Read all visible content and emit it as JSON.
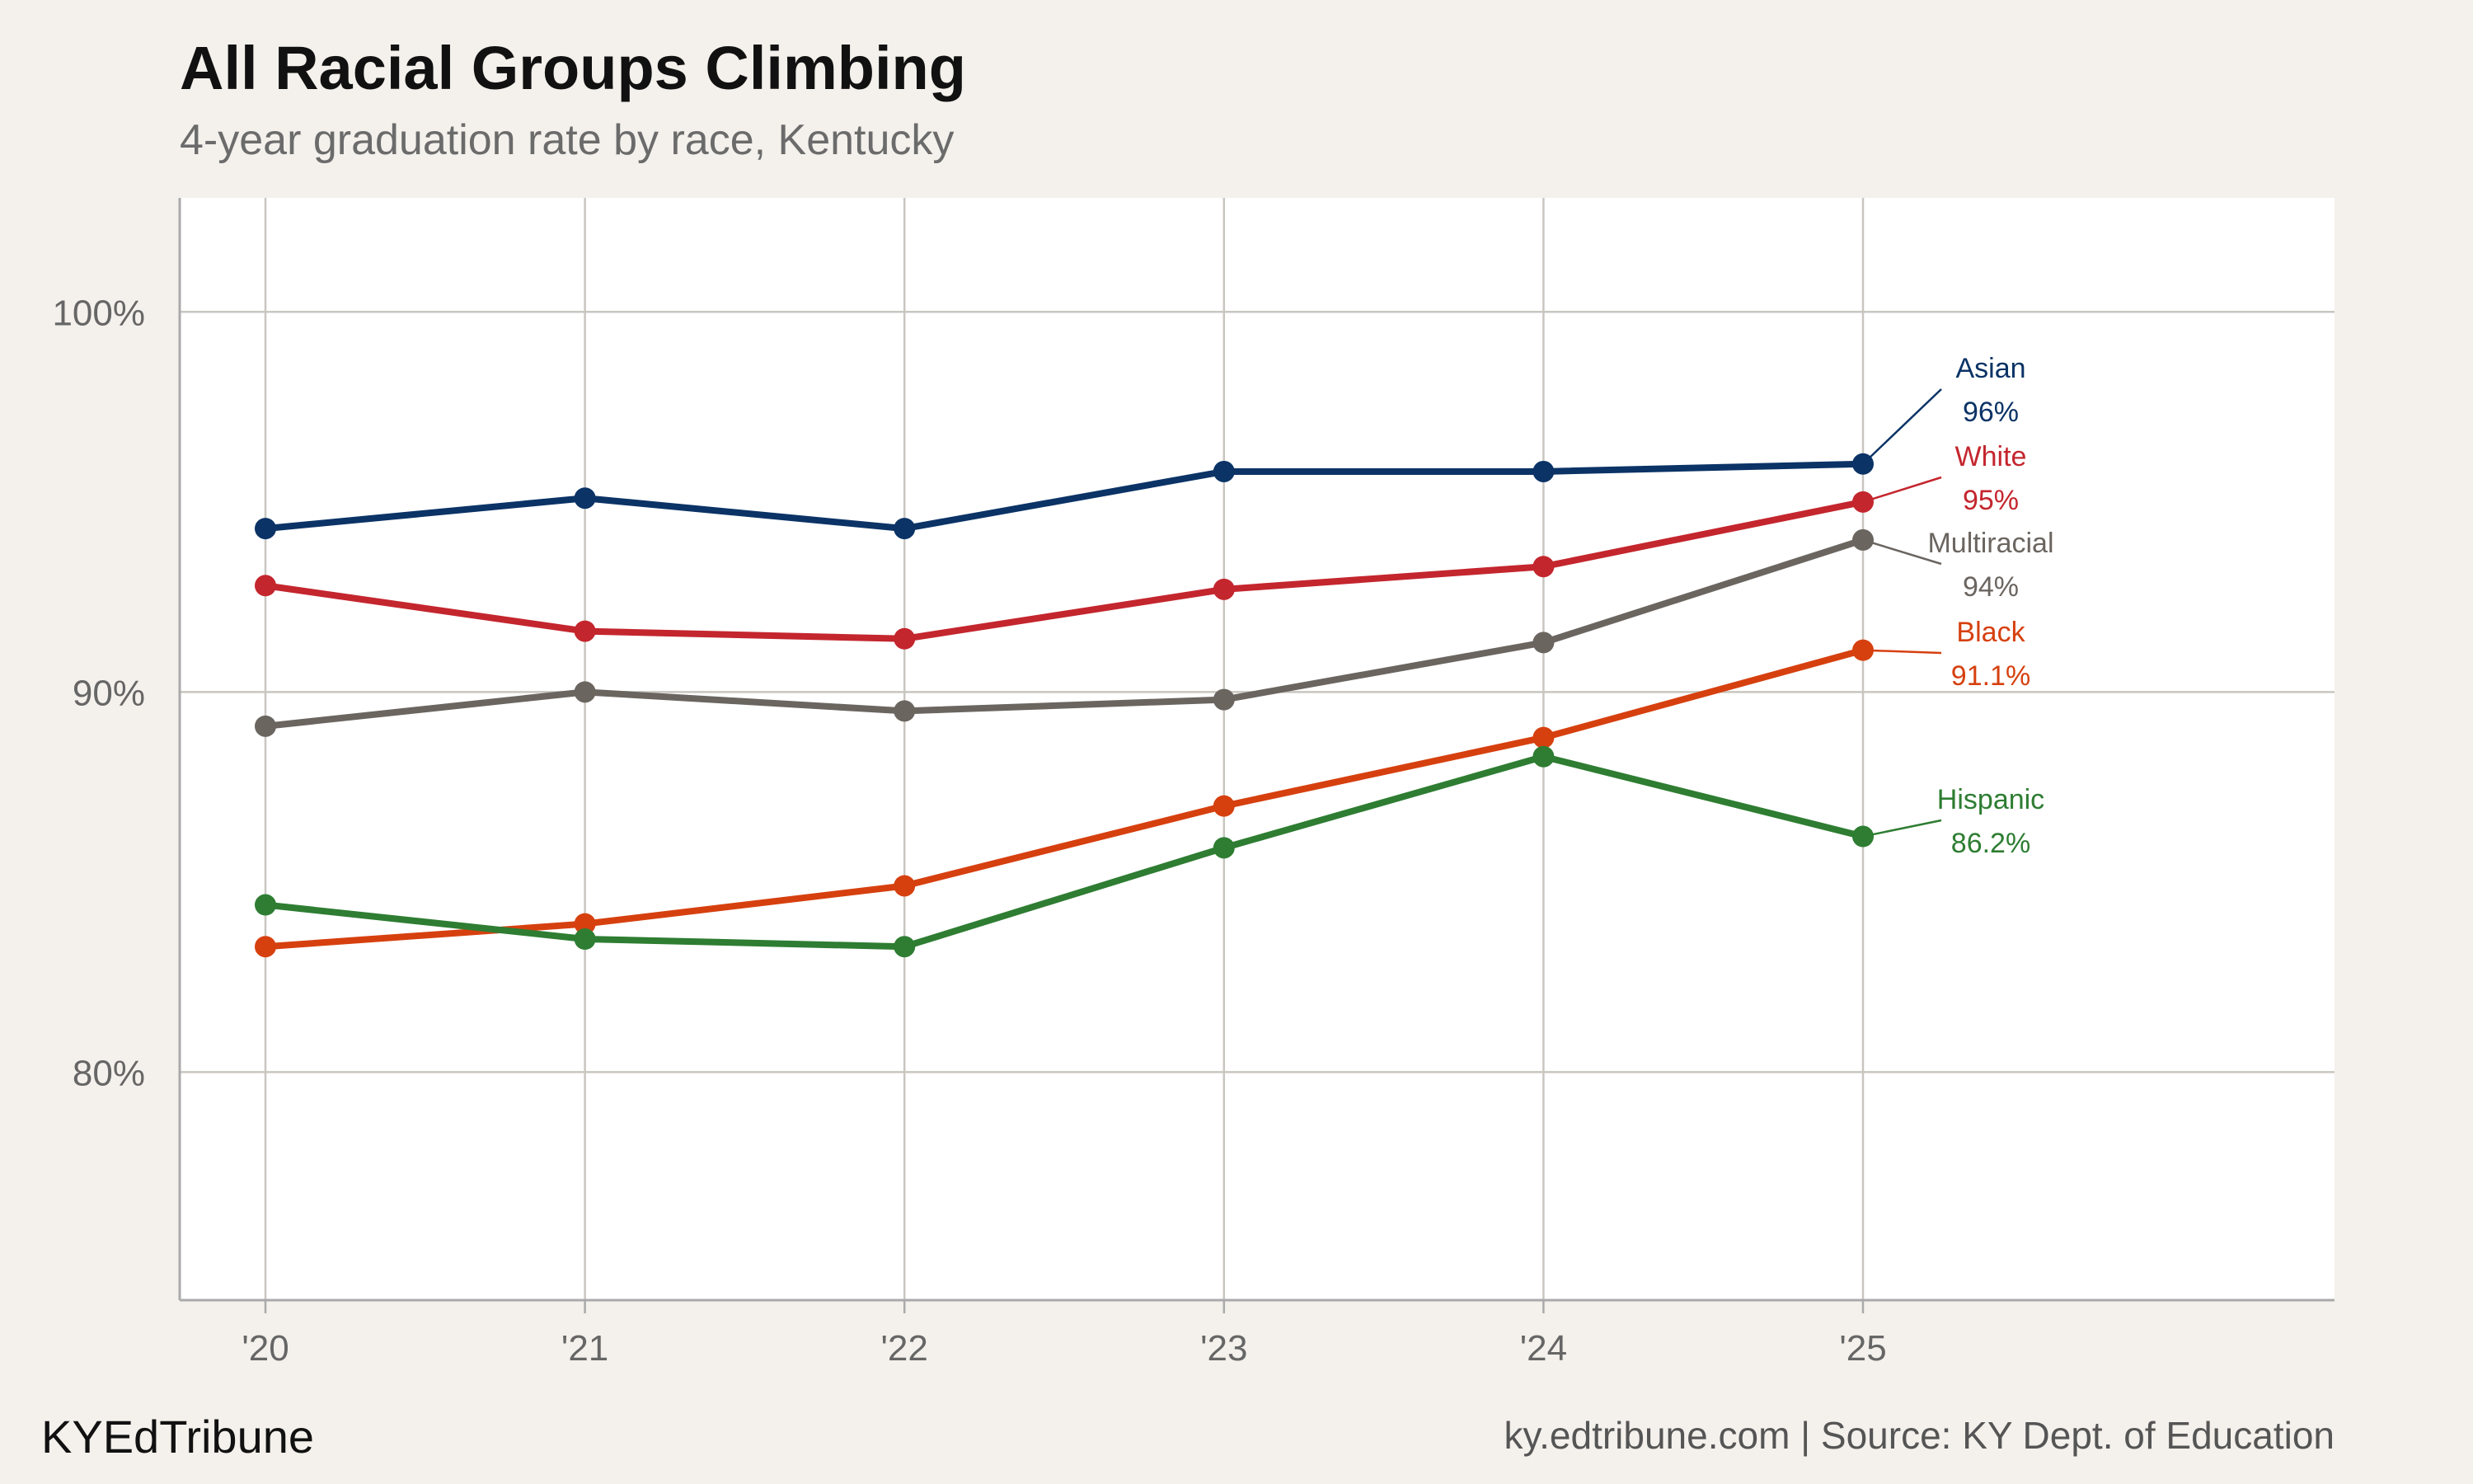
{
  "brand": "KYEdTribune",
  "source": "ky.edtribune.com | Source: KY Dept. of Education",
  "colors": {
    "background": "#f4f1ec",
    "plot_background": "#ffffff",
    "grid": "#c9c6c0"
  },
  "chart_data": {
    "type": "line",
    "title": "All Racial Groups Climbing",
    "subtitle": "4-year graduation rate by race, Kentucky",
    "xlabel": "",
    "ylabel": "",
    "x": [
      "'20",
      "'21",
      "'22",
      "'23",
      "'24",
      "'25"
    ],
    "ylim": [
      74,
      103
    ],
    "yticks": [
      80,
      90,
      100
    ],
    "ytick_labels": [
      "80%",
      "90%",
      "100%"
    ],
    "grid": true,
    "legend": "direct labels at line ends",
    "series": [
      {
        "name": "Asian",
        "color": "#0b3366",
        "values": [
          94.3,
          95.1,
          94.3,
          95.8,
          95.8,
          96.0
        ],
        "end_label": "96%"
      },
      {
        "name": "White",
        "color": "#c4262e",
        "values": [
          92.8,
          91.6,
          91.4,
          92.7,
          93.3,
          95.0
        ],
        "end_label": "95%"
      },
      {
        "name": "Multiracial",
        "color": "#6b6560",
        "values": [
          89.1,
          90.0,
          89.5,
          89.8,
          91.3,
          94.0
        ],
        "end_label": "94%"
      },
      {
        "name": "Black",
        "color": "#d6400f",
        "values": [
          83.3,
          83.9,
          84.9,
          87.0,
          88.8,
          91.1
        ],
        "end_label": "91.1%"
      },
      {
        "name": "Hispanic",
        "color": "#2e7d32",
        "values": [
          84.4,
          83.5,
          83.3,
          85.9,
          88.3,
          86.2
        ],
        "end_label": "86.2%"
      }
    ]
  }
}
